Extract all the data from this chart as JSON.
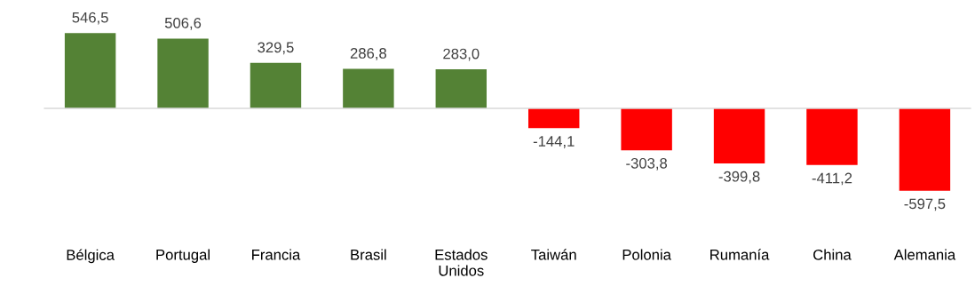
{
  "chart_data": {
    "type": "bar",
    "categories": [
      "Bélgica",
      "Portugal",
      "Francia",
      "Brasil",
      "Estados\nUnidos",
      "Taiwán",
      "Polonia",
      "Rumanía",
      "China",
      "Alemania"
    ],
    "values": [
      546.5,
      506.6,
      329.5,
      286.8,
      283.0,
      -144.1,
      -303.8,
      -399.8,
      -411.2,
      -597.5
    ],
    "colors": [
      "#548235",
      "#548235",
      "#548235",
      "#548235",
      "#548235",
      "#ff0000",
      "#ff0000",
      "#ff0000",
      "#ff0000",
      "#ff0000"
    ],
    "value_labels": [
      "546,5",
      "506,6",
      "329,5",
      "286,8",
      "283,0",
      "-144,1",
      "-303,8",
      "-399,8",
      "-411,2",
      "-597,5"
    ],
    "tick_labels": "x",
    "grid": false,
    "legend": false
  }
}
